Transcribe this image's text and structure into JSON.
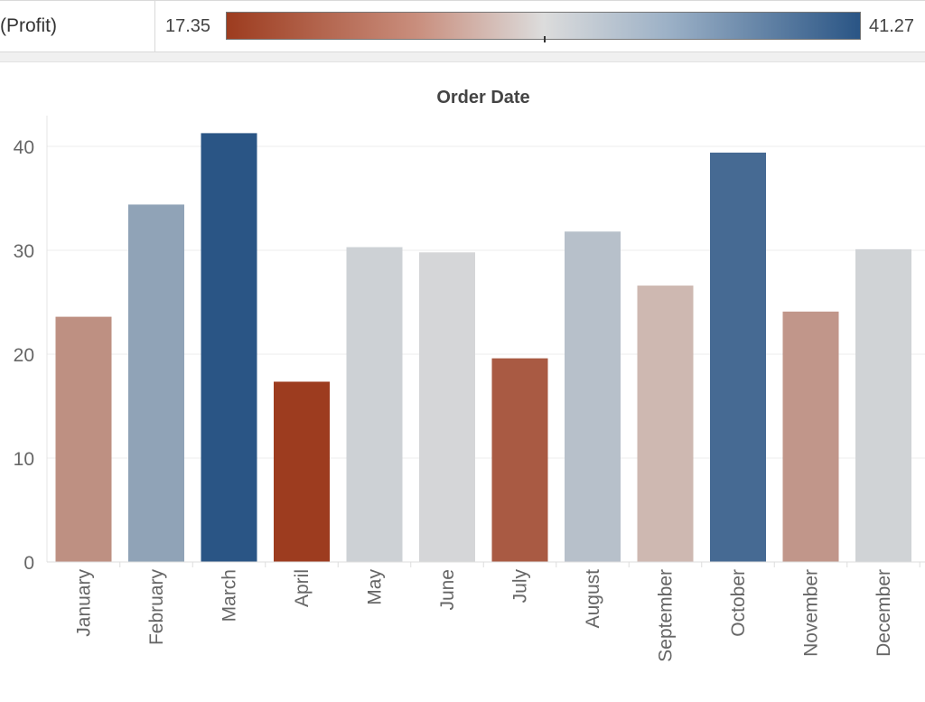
{
  "legend": {
    "label": "(Profit)",
    "min_label": "17.35",
    "max_label": "41.27",
    "min_value": 17.35,
    "max_value": 41.27,
    "colors": {
      "low": "#9d3c1f",
      "mid": "#dcdcdc",
      "high": "#2a5585"
    }
  },
  "chart_data": {
    "type": "bar",
    "title": "Order Date",
    "xlabel": "",
    "ylabel": "",
    "ylim": [
      0,
      43
    ],
    "yticks": [
      0,
      10,
      20,
      30,
      40
    ],
    "categories": [
      "January",
      "February",
      "March",
      "April",
      "May",
      "June",
      "July",
      "August",
      "September",
      "October",
      "November",
      "December"
    ],
    "values": [
      23.6,
      34.4,
      41.27,
      17.35,
      30.3,
      29.8,
      19.6,
      31.8,
      26.6,
      39.4,
      24.1,
      30.1
    ],
    "grid": true
  }
}
